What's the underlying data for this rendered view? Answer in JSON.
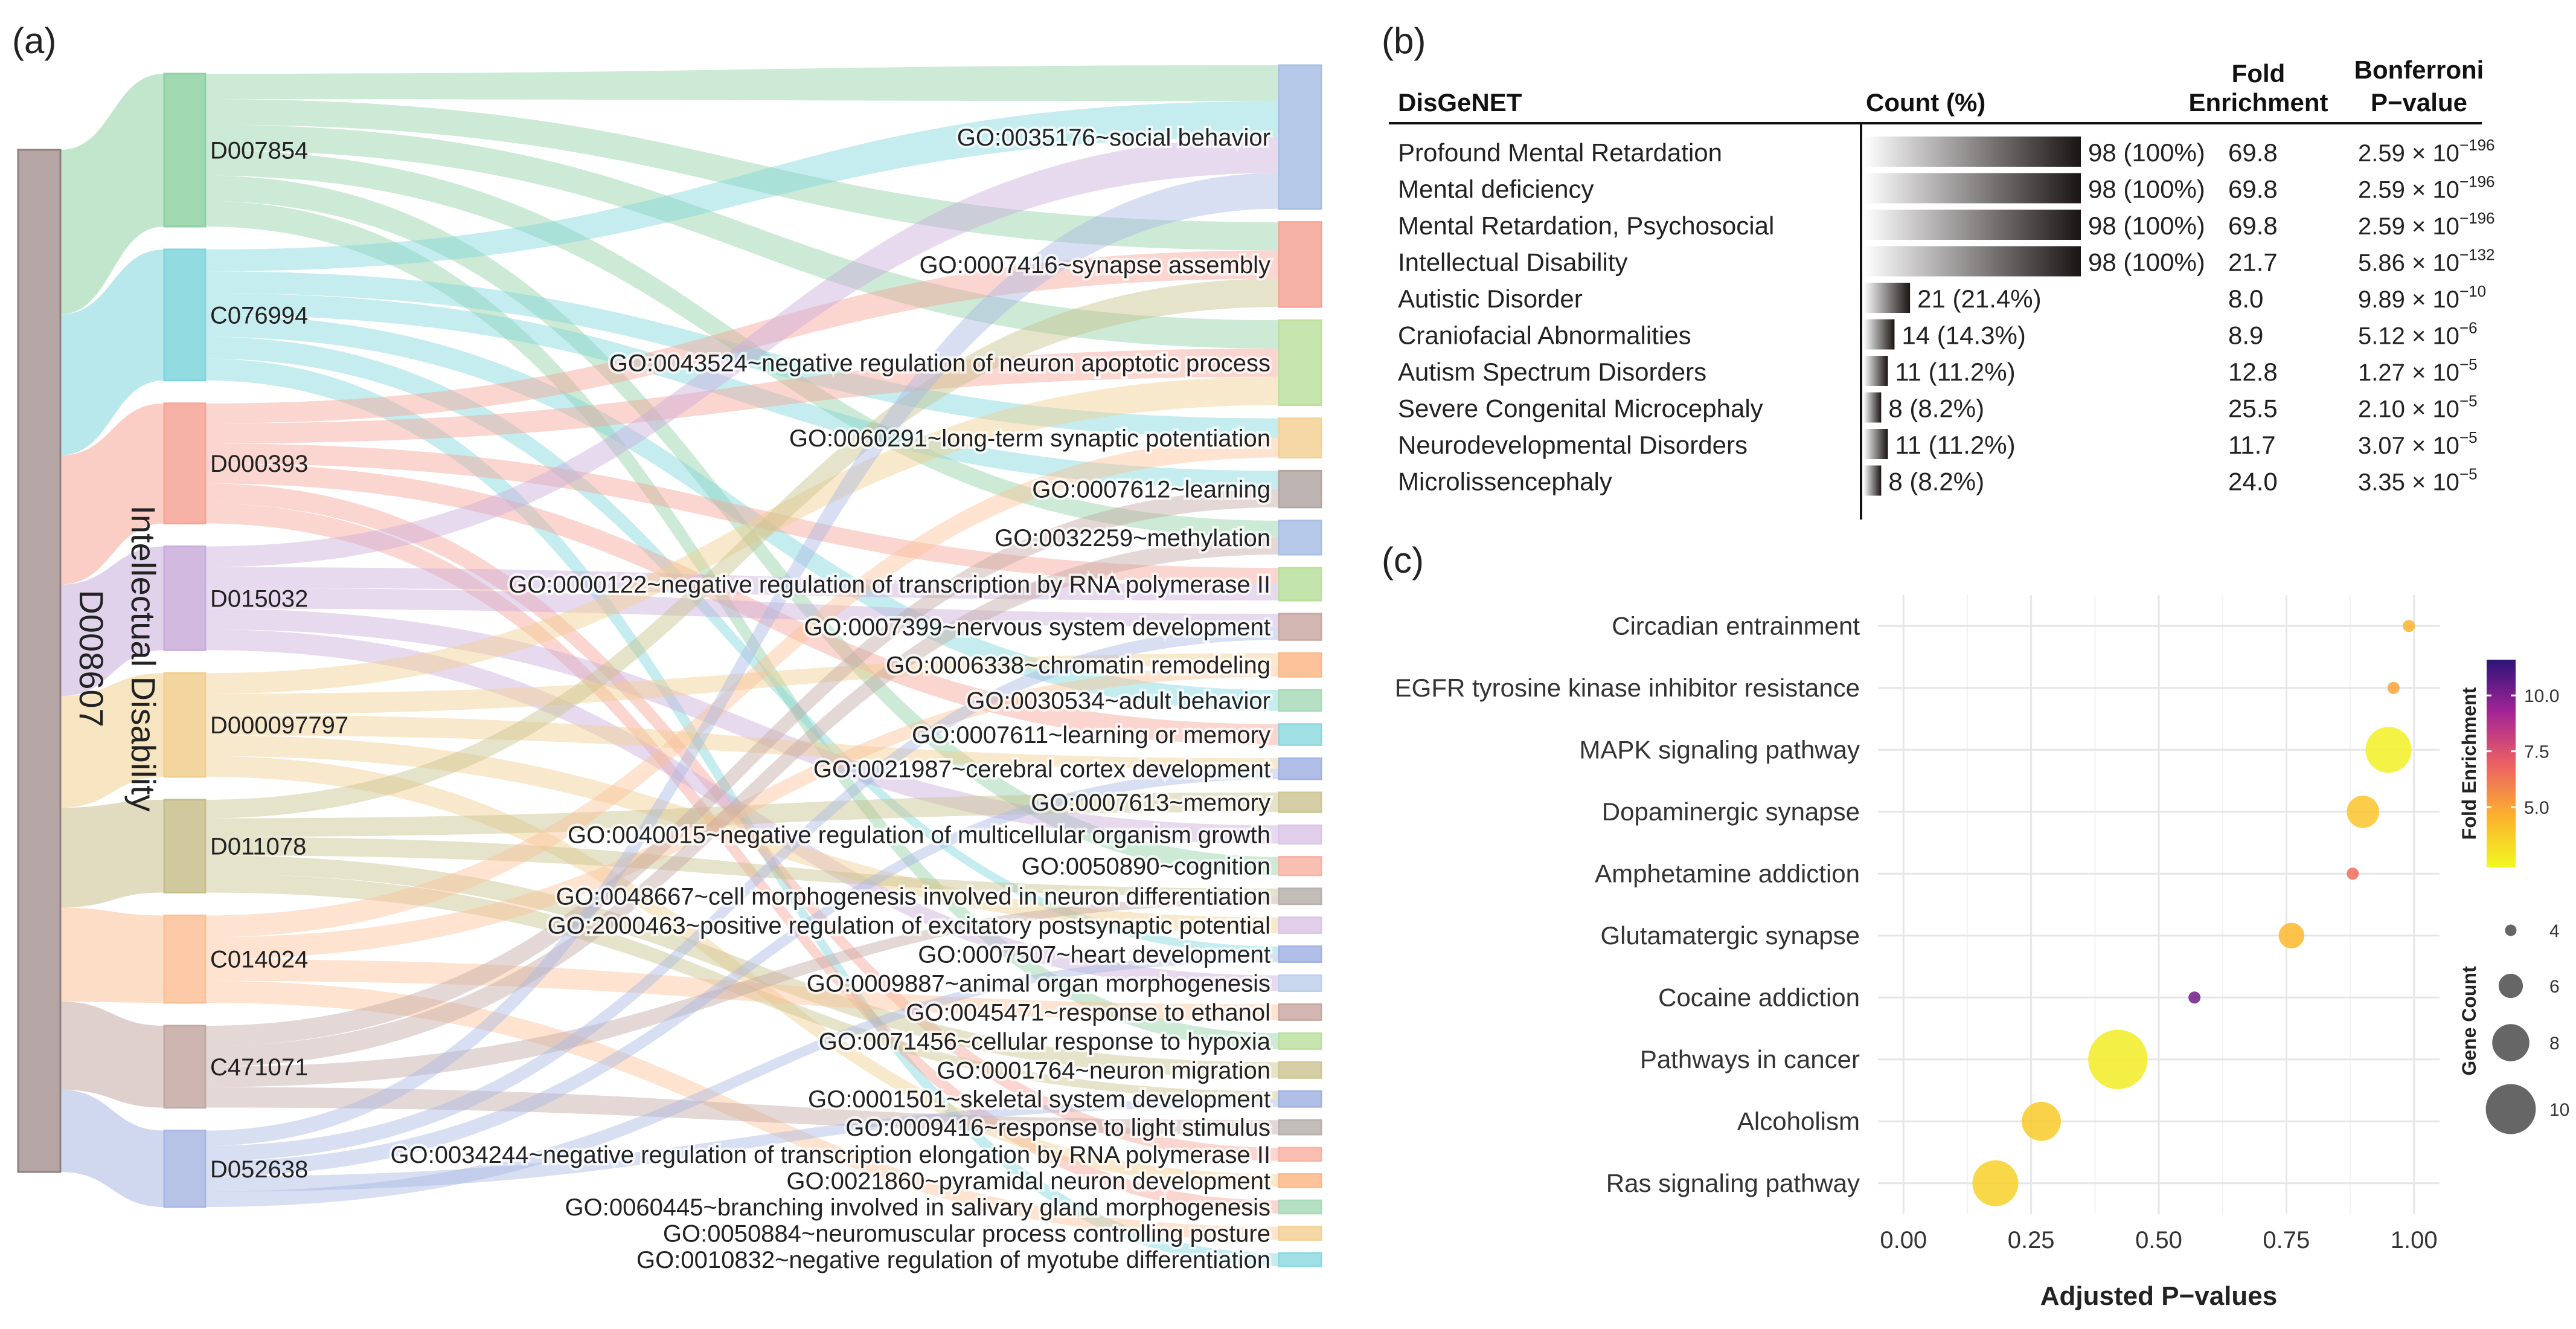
{
  "panel_labels": {
    "a": "(a)",
    "b": "(b)",
    "c": "(c)"
  },
  "chart_data": [
    {
      "type": "sankey",
      "panel": "(a)",
      "source": {
        "code": "D008607",
        "name": "Intellectual Disability"
      },
      "middle_nodes": [
        {
          "code": "D007854",
          "color": "#8fd1a3",
          "weight": 14
        },
        {
          "code": "C076994",
          "color": "#7fd6dc",
          "weight": 12
        },
        {
          "code": "D000393",
          "color": "#f6a596",
          "weight": 11
        },
        {
          "code": "D015032",
          "color": "#c9addb",
          "weight": 9.5
        },
        {
          "code": "D000097797",
          "color": "#f1cf8e",
          "weight": 9.5
        },
        {
          "code": "D011078",
          "color": "#c8c08c",
          "weight": 8.5
        },
        {
          "code": "C014024",
          "color": "#fbc196",
          "weight": 8
        },
        {
          "code": "C471071",
          "color": "#c4a8a4",
          "weight": 7.5
        },
        {
          "code": "D052638",
          "color": "#a9b8e3",
          "weight": 7
        }
      ],
      "go_terms": [
        {
          "label": "GO:0035176~social behavior",
          "color": "#a9bfe4",
          "weight": 11
        },
        {
          "label": "GO:0007416~synapse assembly",
          "color": "#f6a597",
          "weight": 6.5
        },
        {
          "label": "GO:0043524~negative regulation of neuron apoptotic process",
          "color": "#bde0a0",
          "weight": 6.5
        },
        {
          "label": "GO:0060291~long-term synaptic potentiation",
          "color": "#f3d197",
          "weight": 3
        },
        {
          "label": "GO:0007612~learning",
          "color": "#b3a7a3",
          "weight": 2.8
        },
        {
          "label": "GO:0032259~methylation",
          "color": "#a9bfe4",
          "weight": 2.6
        },
        {
          "label": "GO:0000122~negative regulation of transcription by RNA polymerase II",
          "color": "#b9e09d",
          "weight": 2.5
        },
        {
          "label": "GO:0007399~nervous system development",
          "color": "#caa9a4",
          "weight": 2
        },
        {
          "label": "GO:0006338~chromatin remodeling",
          "color": "#fcb989",
          "weight": 1.8
        },
        {
          "label": "GO:0030534~adult behavior",
          "color": "#a8dbb8",
          "weight": 1.6
        },
        {
          "label": "GO:0007611~learning or memory",
          "color": "#8fd9de",
          "weight": 1.6
        },
        {
          "label": "GO:0021987~cerebral cortex development",
          "color": "#a3b3e3",
          "weight": 1.6
        },
        {
          "label": "GO:0007613~memory",
          "color": "#cfc797",
          "weight": 1.5
        },
        {
          "label": "GO:0040015~negative regulation of multicellular organism growth",
          "color": "#dcc6e6",
          "weight": 1.4
        },
        {
          "label": "GO:0050890~cognition",
          "color": "#f9b4a6",
          "weight": 1.4
        },
        {
          "label": "GO:0048667~cell morphogenesis involved in neuron differentiation",
          "color": "#b9b1ae",
          "weight": 1.2
        },
        {
          "label": "GO:2000463~positive regulation of excitatory postsynaptic potential",
          "color": "#dcc6e6",
          "weight": 1.2
        },
        {
          "label": "GO:0007507~heart development",
          "color": "#a3b3e3",
          "weight": 1.2
        },
        {
          "label": "GO:0009887~animal organ morphogenesis",
          "color": "#c1d1ec",
          "weight": 1.2
        },
        {
          "label": "GO:0045471~response to ethanol",
          "color": "#caa9a4",
          "weight": 1.2
        },
        {
          "label": "GO:0071456~cellular response to hypoxia",
          "color": "#bde0a0",
          "weight": 1.2
        },
        {
          "label": "GO:0001764~neuron migration",
          "color": "#cfc797",
          "weight": 1.2
        },
        {
          "label": "GO:0001501~skeletal system development",
          "color": "#a3b3e3",
          "weight": 1.2
        },
        {
          "label": "GO:0009416~response to light stimulus",
          "color": "#b9b1ae",
          "weight": 1.1
        },
        {
          "label": "GO:0034244~negative regulation of transcription elongation by RNA polymerase II",
          "color": "#f9b4a6",
          "weight": 1
        },
        {
          "label": "GO:0021860~pyramidal neuron development",
          "color": "#fcb989",
          "weight": 1
        },
        {
          "label": "GO:0060445~branching involved in salivary gland morphogenesis",
          "color": "#a8dbb8",
          "weight": 1
        },
        {
          "label": "GO:0050884~neuromuscular process controlling posture",
          "color": "#f3d197",
          "weight": 1
        },
        {
          "label": "GO:0010832~negative regulation of myotube differentiation",
          "color": "#8fd9de",
          "weight": 1
        }
      ],
      "links": [
        [
          0,
          0
        ],
        [
          0,
          1
        ],
        [
          0,
          2
        ],
        [
          0,
          5
        ],
        [
          0,
          14
        ],
        [
          0,
          20
        ],
        [
          1,
          0
        ],
        [
          1,
          3
        ],
        [
          1,
          4
        ],
        [
          1,
          9
        ],
        [
          1,
          17
        ],
        [
          1,
          28
        ],
        [
          2,
          1
        ],
        [
          2,
          2
        ],
        [
          2,
          6
        ],
        [
          2,
          10
        ],
        [
          2,
          24
        ],
        [
          2,
          26
        ],
        [
          3,
          0
        ],
        [
          3,
          6
        ],
        [
          3,
          7
        ],
        [
          3,
          13
        ],
        [
          3,
          18
        ],
        [
          4,
          2
        ],
        [
          4,
          8
        ],
        [
          4,
          11
        ],
        [
          4,
          16
        ],
        [
          4,
          25
        ],
        [
          5,
          1
        ],
        [
          5,
          12
        ],
        [
          5,
          15
        ],
        [
          5,
          21
        ],
        [
          5,
          22
        ],
        [
          6,
          3
        ],
        [
          6,
          8
        ],
        [
          6,
          19
        ],
        [
          6,
          27
        ],
        [
          7,
          4
        ],
        [
          7,
          5
        ],
        [
          7,
          15
        ],
        [
          7,
          23
        ],
        [
          8,
          0
        ],
        [
          8,
          7
        ],
        [
          8,
          11
        ],
        [
          8,
          22
        ],
        [
          8,
          17
        ]
      ]
    },
    {
      "type": "table",
      "panel": "(b)",
      "headers": {
        "name": "DisGeNET",
        "count": "Count (%)",
        "fold_line1": "Fold",
        "fold_line2": "Enrichment",
        "bonf_line1": "Bonferroni",
        "bonf_line2": "P−value"
      },
      "max_count": 98,
      "bar_color": "#1a1414",
      "rows": [
        {
          "name": "Profound Mental Retardation",
          "count": 98,
          "count_label": "98 (100%)",
          "fold": "69.8",
          "pval": "2.59 × 10",
          "exp": "−196"
        },
        {
          "name": "Mental deficiency",
          "count": 98,
          "count_label": "98 (100%)",
          "fold": "69.8",
          "pval": "2.59 × 10",
          "exp": "−196"
        },
        {
          "name": "Mental Retardation, Psychosocial",
          "count": 98,
          "count_label": "98 (100%)",
          "fold": "69.8",
          "pval": "2.59 × 10",
          "exp": "−196"
        },
        {
          "name": "Intellectual Disability",
          "count": 98,
          "count_label": "98 (100%)",
          "fold": "21.7",
          "pval": "5.86 × 10",
          "exp": "−132"
        },
        {
          "name": "Autistic Disorder",
          "count": 21,
          "count_label": "21 (21.4%)",
          "fold": "8.0",
          "pval": "9.89 × 10",
          "exp": "−10"
        },
        {
          "name": "Craniofacial Abnormalities",
          "count": 14,
          "count_label": "14 (14.3%)",
          "fold": "8.9",
          "pval": "5.12 × 10",
          "exp": "−6"
        },
        {
          "name": "Autism Spectrum Disorders",
          "count": 11,
          "count_label": "11 (11.2%)",
          "fold": "12.8",
          "pval": "1.27 × 10",
          "exp": "−5"
        },
        {
          "name": "Severe Congenital Microcephaly",
          "count": 8,
          "count_label": "8 (8.2%)",
          "fold": "25.5",
          "pval": "2.10 × 10",
          "exp": "−5"
        },
        {
          "name": "Neurodevelopmental Disorders",
          "count": 11,
          "count_label": "11 (11.2%)",
          "fold": "11.7",
          "pval": "3.07 × 10",
          "exp": "−5"
        },
        {
          "name": "Microlissencephaly",
          "count": 8,
          "count_label": "8 (8.2%)",
          "fold": "24.0",
          "pval": "3.35 × 10",
          "exp": "−5"
        }
      ]
    },
    {
      "type": "scatter",
      "panel": "(c)",
      "xlabel": "Adjusted P−values",
      "xlim": [
        -0.05,
        1.05
      ],
      "xticks": [
        0,
        0.25,
        0.5,
        0.75,
        1
      ],
      "xtick_labels": [
        "0.00",
        "0.25",
        "0.50",
        "0.75",
        "1.00"
      ],
      "points": [
        {
          "pathway": "Circadian entrainment",
          "p": 0.99,
          "fold": 4.6,
          "count": 4
        },
        {
          "pathway": "EGFR tyrosine kinase inhibitor resistance",
          "p": 0.96,
          "fold": 5.0,
          "count": 4
        },
        {
          "pathway": "MAPK signaling pathway",
          "p": 0.95,
          "fold": 2.6,
          "count": 9
        },
        {
          "pathway": "Dopaminergic synapse",
          "p": 0.9,
          "fold": 4.0,
          "count": 7
        },
        {
          "pathway": "Amphetamine addiction",
          "p": 0.88,
          "fold": 6.6,
          "count": 4
        },
        {
          "pathway": "Glutamatergic synapse",
          "p": 0.76,
          "fold": 4.4,
          "count": 6
        },
        {
          "pathway": "Cocaine addiction",
          "p": 0.57,
          "fold": 10.3,
          "count": 4
        },
        {
          "pathway": "Pathways in cancer",
          "p": 0.42,
          "fold": 2.7,
          "count": 11
        },
        {
          "pathway": "Alcoholism",
          "p": 0.27,
          "fold": 3.8,
          "count": 8
        },
        {
          "pathway": "Ras signaling pathway",
          "p": 0.18,
          "fold": 3.6,
          "count": 9
        }
      ],
      "color_legend": {
        "title": "Fold Enrichment",
        "ticks": [
          "10.0",
          "7.5",
          "5.0"
        ],
        "tick_values": [
          10,
          7.5,
          5
        ],
        "range": [
          2.3,
          11.6
        ]
      },
      "size_legend": {
        "title": "Gene Count",
        "values": [
          4,
          6,
          8,
          10
        ],
        "labels": [
          "4",
          "6",
          "8",
          "10"
        ]
      }
    }
  ]
}
